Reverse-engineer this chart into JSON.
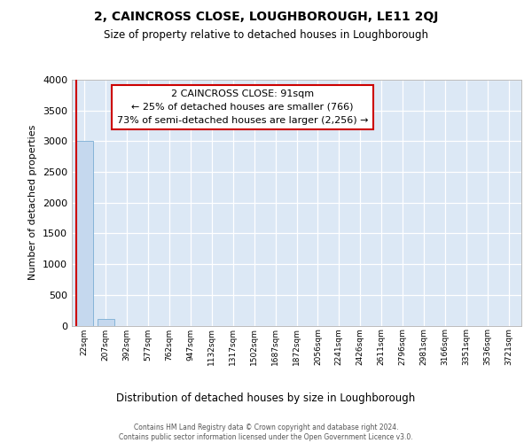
{
  "title": "2, CAINCROSS CLOSE, LOUGHBOROUGH, LE11 2QJ",
  "subtitle": "Size of property relative to detached houses in Loughborough",
  "xlabel": "Distribution of detached houses by size in Loughborough",
  "ylabel": "Number of detached properties",
  "bar_labels": [
    "22sqm",
    "207sqm",
    "392sqm",
    "577sqm",
    "762sqm",
    "947sqm",
    "1132sqm",
    "1317sqm",
    "1502sqm",
    "1687sqm",
    "1872sqm",
    "2056sqm",
    "2241sqm",
    "2426sqm",
    "2611sqm",
    "2796sqm",
    "2981sqm",
    "3166sqm",
    "3351sqm",
    "3536sqm",
    "3721sqm"
  ],
  "bar_heights": [
    3000,
    110,
    0,
    0,
    0,
    0,
    0,
    0,
    0,
    0,
    0,
    0,
    0,
    0,
    0,
    0,
    0,
    0,
    0,
    0,
    0
  ],
  "bar_color": "#c5d8ee",
  "bar_edge_color": "#7aadd4",
  "annotation_text_line1": "2 CAINCROSS CLOSE: 91sqm",
  "annotation_text_line2": "← 25% of detached houses are smaller (766)",
  "annotation_text_line3": "73% of semi-detached houses are larger (2,256) →",
  "annotation_box_color": "#ffffff",
  "annotation_box_edge": "#cc0000",
  "red_line_color": "#cc0000",
  "ylim": [
    0,
    4000
  ],
  "yticks": [
    0,
    500,
    1000,
    1500,
    2000,
    2500,
    3000,
    3500,
    4000
  ],
  "bg_color": "#dce8f5",
  "grid_color": "#ffffff",
  "footer_line1": "Contains HM Land Registry data © Crown copyright and database right 2024.",
  "footer_line2": "Contains public sector information licensed under the Open Government Licence v3.0."
}
